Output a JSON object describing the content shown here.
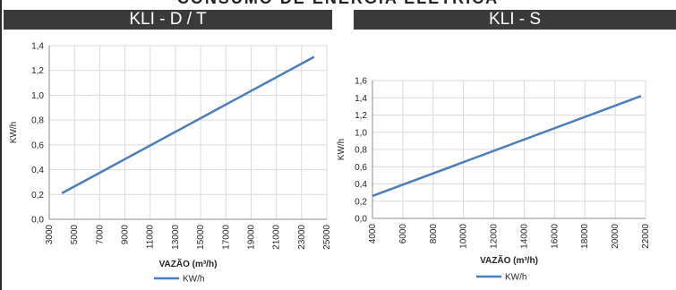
{
  "page_heading": "CONSUMO DE ENERGIA ELÉTRICA",
  "panels": {
    "left": {
      "header": "KLI - D / T"
    },
    "right": {
      "header": "KLI - S"
    }
  },
  "chart_data": [
    {
      "type": "line",
      "title": "KLI - D / T",
      "xlabel": "VAZÃO (m³/h)",
      "ylabel": "KW/h",
      "xlim": [
        3000,
        25000
      ],
      "ylim": [
        0,
        1.4
      ],
      "xticks": [
        "3000",
        "5000",
        "7000",
        "9000",
        "11000",
        "13000",
        "15000",
        "17000",
        "19000",
        "21000",
        "23000",
        "25000"
      ],
      "yticks": [
        "0,0",
        "0,2",
        "0,4",
        "0,6",
        "0,8",
        "1,0",
        "1,2",
        "1,4"
      ],
      "grid": true,
      "legend_position": "bottom",
      "series": [
        {
          "name": "KW/h",
          "color": "#4a7ebb",
          "x": [
            4000,
            24000
          ],
          "y": [
            0.21,
            1.31
          ]
        }
      ]
    },
    {
      "type": "line",
      "title": "KLI - S",
      "xlabel": "VAZÃO (m³/h)",
      "ylabel": "KW/h",
      "xlim": [
        4000,
        22000
      ],
      "ylim": [
        0,
        1.6
      ],
      "xticks": [
        "4000",
        "6000",
        "8000",
        "10000",
        "12000",
        "14000",
        "16000",
        "18000",
        "20000",
        "22000"
      ],
      "yticks": [
        "0,0",
        "0,2",
        "0,4",
        "0,6",
        "0,8",
        "1,0",
        "1,2",
        "1,4",
        "1,6"
      ],
      "grid": true,
      "legend_position": "bottom",
      "series": [
        {
          "name": "KW/h",
          "color": "#4a7ebb",
          "x": [
            4000,
            21700
          ],
          "y": [
            0.26,
            1.42
          ]
        }
      ]
    }
  ]
}
